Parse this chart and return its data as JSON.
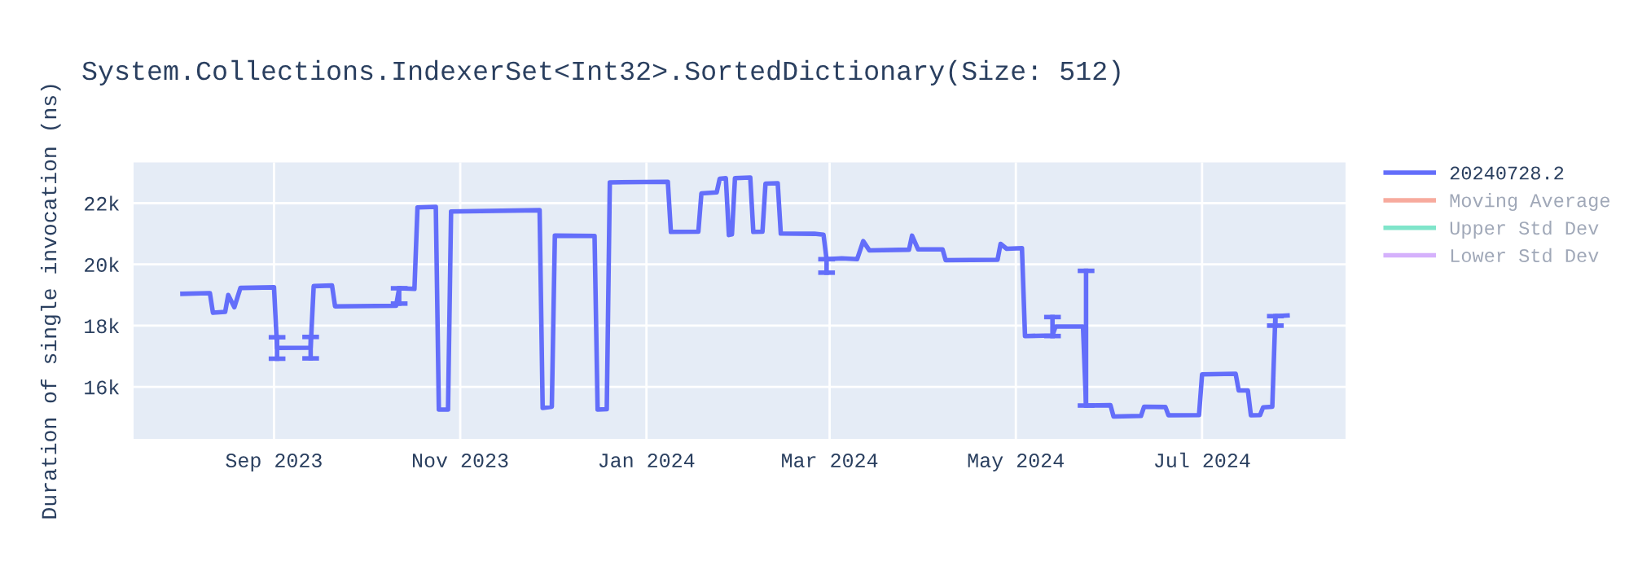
{
  "chart_data": {
    "type": "line",
    "title": "System.Collections.IndexerSet<Int32>.SortedDictionary(Size: 512)",
    "ylabel": "Duration of single invocation (ns)",
    "x": [
      "2023-08-02",
      "2023-08-11",
      "2023-08-12",
      "2023-08-16",
      "2023-08-17",
      "2023-08-19",
      "2023-08-21",
      "2023-09-01",
      "2023-09-02",
      "2023-09-13",
      "2023-09-14",
      "2023-09-20",
      "2023-09-21",
      "2023-10-11",
      "2023-10-12",
      "2023-10-17",
      "2023-10-18",
      "2023-10-24",
      "2023-10-25",
      "2023-10-28",
      "2023-10-29",
      "2023-11-27",
      "2023-11-28",
      "2023-12-01",
      "2023-12-02",
      "2023-12-15",
      "2023-12-16",
      "2023-12-19",
      "2023-12-20",
      "2024-01-08",
      "2024-01-09",
      "2024-01-18",
      "2024-01-19",
      "2024-01-24",
      "2024-01-25",
      "2024-01-27",
      "2024-01-28",
      "2024-01-29",
      "2024-01-30",
      "2024-02-04",
      "2024-02-05",
      "2024-02-08",
      "2024-02-09",
      "2024-02-13",
      "2024-02-14",
      "2024-02-25",
      "2024-02-28",
      "2024-02-29",
      "2024-03-05",
      "2024-03-10",
      "2024-03-12",
      "2024-03-14",
      "2024-03-27",
      "2024-03-28",
      "2024-03-30",
      "2024-04-07",
      "2024-04-08",
      "2024-04-25",
      "2024-04-26",
      "2024-04-28",
      "2024-05-03",
      "2024-05-04",
      "2024-05-13",
      "2024-05-14",
      "2024-05-23",
      "2024-05-24",
      "2024-06-01",
      "2024-06-02",
      "2024-06-11",
      "2024-06-12",
      "2024-06-19",
      "2024-06-20",
      "2024-06-30",
      "2024-07-01",
      "2024-07-12",
      "2024-07-13",
      "2024-07-16",
      "2024-07-17",
      "2024-07-20",
      "2024-07-21",
      "2024-07-24",
      "2024-07-25",
      "2024-07-29"
    ],
    "series": [
      {
        "name": "20240728.2",
        "color": "#636efa",
        "values": [
          19040,
          19060,
          18420,
          18450,
          19000,
          18600,
          19230,
          19250,
          17270,
          17280,
          19290,
          19310,
          18630,
          18650,
          19220,
          19200,
          21860,
          21880,
          15260,
          15260,
          21730,
          21770,
          15310,
          15350,
          20940,
          20930,
          15260,
          15270,
          22680,
          22700,
          21060,
          21070,
          22320,
          22350,
          22800,
          22820,
          20960,
          20980,
          22820,
          22840,
          21060,
          21070,
          22640,
          22650,
          21010,
          21000,
          20970,
          20170,
          20200,
          20170,
          20760,
          20460,
          20480,
          20940,
          20490,
          20490,
          20140,
          20150,
          20670,
          20510,
          20530,
          17660,
          17680,
          17970,
          17970,
          15390,
          15400,
          15030,
          15050,
          15350,
          15340,
          15070,
          15080,
          16410,
          16430,
          15880,
          15880,
          15070,
          15080,
          15330,
          15350,
          18310,
          18330
        ],
        "errors": [
          null,
          null,
          null,
          null,
          null,
          null,
          null,
          null,
          350,
          350,
          null,
          null,
          null,
          null,
          [
            18720,
            19220
          ],
          null,
          null,
          null,
          null,
          null,
          null,
          null,
          null,
          null,
          null,
          null,
          null,
          null,
          null,
          null,
          null,
          null,
          null,
          null,
          null,
          null,
          null,
          null,
          null,
          null,
          null,
          null,
          null,
          null,
          null,
          null,
          null,
          [
            19730,
            20170
          ],
          null,
          null,
          null,
          null,
          null,
          null,
          null,
          null,
          null,
          null,
          null,
          null,
          null,
          null,
          [
            17660,
            18280
          ],
          null,
          null,
          [
            15390,
            19790
          ],
          null,
          null,
          null,
          null,
          null,
          null,
          null,
          null,
          null,
          null,
          null,
          null,
          null,
          null,
          null,
          [
            18000,
            18310
          ],
          null
        ]
      },
      {
        "name": "Moving Average",
        "color": "#ef553b",
        "values": [
          null,
          null,
          null,
          null,
          null,
          null,
          null,
          null,
          null,
          null,
          null,
          null,
          null,
          null,
          null,
          null,
          null,
          null,
          null,
          null,
          null,
          null,
          null,
          null,
          null,
          null,
          null,
          null,
          null,
          null,
          null,
          null,
          null,
          null,
          null,
          null,
          null,
          null,
          null,
          null,
          null,
          null,
          null,
          null,
          null,
          null,
          null,
          null,
          null,
          null,
          null,
          null,
          null,
          null,
          null,
          null,
          null,
          null,
          null,
          null,
          null,
          null,
          null,
          null,
          null,
          null,
          null,
          null,
          null,
          null,
          null,
          null,
          null,
          null,
          null,
          null,
          null,
          null,
          null,
          null,
          null,
          null,
          null
        ]
      },
      {
        "name": "Upper Std Dev",
        "color": "#00cc96",
        "values": [
          null,
          null,
          null,
          null,
          null,
          null,
          null,
          null,
          null,
          null,
          null,
          null,
          null,
          null,
          null,
          null,
          null,
          null,
          null,
          null,
          null,
          null,
          null,
          null,
          null,
          null,
          null,
          null,
          null,
          null,
          null,
          null,
          null,
          null,
          null,
          null,
          null,
          null,
          null,
          null,
          null,
          null,
          null,
          null,
          null,
          null,
          null,
          null,
          null,
          null,
          null,
          null,
          null,
          null,
          null,
          null,
          null,
          null,
          null,
          null,
          null,
          null,
          null,
          null,
          null,
          null,
          null,
          null,
          null,
          null,
          null,
          null,
          null,
          null,
          null,
          null,
          null,
          null,
          null,
          null,
          null,
          null,
          null
        ]
      },
      {
        "name": "Lower Std Dev",
        "color": "#ab63fa",
        "values": [
          null,
          null,
          null,
          null,
          null,
          null,
          null,
          null,
          null,
          null,
          null,
          null,
          null,
          null,
          null,
          null,
          null,
          null,
          null,
          null,
          null,
          null,
          null,
          null,
          null,
          null,
          null,
          null,
          null,
          null,
          null,
          null,
          null,
          null,
          null,
          null,
          null,
          null,
          null,
          null,
          null,
          null,
          null,
          null,
          null,
          null,
          null,
          null,
          null,
          null,
          null,
          null,
          null,
          null,
          null,
          null,
          null,
          null,
          null,
          null,
          null,
          null,
          null,
          null,
          null,
          null,
          null,
          null,
          null,
          null,
          null,
          null,
          null,
          null,
          null,
          null,
          null,
          null,
          null,
          null,
          null,
          null,
          null
        ]
      }
    ],
    "xlim": [
      "2023-07-17",
      "2024-08-17"
    ],
    "xticks": [
      {
        "value": "2023-09-01",
        "label": "Sep 2023"
      },
      {
        "value": "2023-11-01",
        "label": "Nov 2023"
      },
      {
        "value": "2024-01-01",
        "label": "Jan 2024"
      },
      {
        "value": "2024-03-01",
        "label": "Mar 2024"
      },
      {
        "value": "2024-05-01",
        "label": "May 2024"
      },
      {
        "value": "2024-07-01",
        "label": "Jul 2024"
      }
    ],
    "ylim": [
      14300,
      23330
    ],
    "yticks": [
      {
        "value": 16000,
        "label": "16k"
      },
      {
        "value": 18000,
        "label": "18k"
      },
      {
        "value": 20000,
        "label": "20k"
      },
      {
        "value": 22000,
        "label": "22k"
      }
    ],
    "grid": true,
    "legend": "top right",
    "line_style": "solid",
    "marker": "none"
  }
}
